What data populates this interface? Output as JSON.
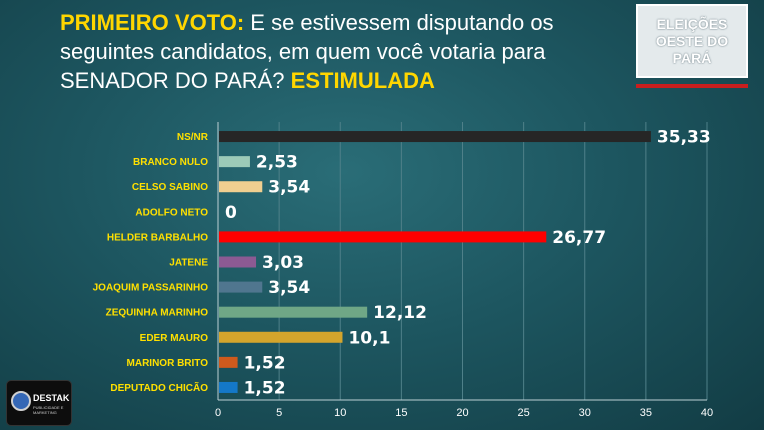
{
  "header": {
    "title_highlight": "PRIMEIRO VOTO:",
    "title_text": " E se estivessem disputando os seguintes candidatos, em quem você votaria para SENADOR DO PARÁ? ",
    "title_tag": "ESTIMULADA"
  },
  "badge": {
    "text": "ELEIÇÕES OESTE DO PARÁ"
  },
  "logo": {
    "name": "DESTAK",
    "tagline": "PUBLICIDADE E MARKETING"
  },
  "chart_data": {
    "type": "bar",
    "orientation": "horizontal",
    "categories": [
      "NS/NR",
      "BRANCO NULO",
      "CELSO SABINO",
      "ADOLFO NETO",
      "HELDER BARBALHO",
      "JATENE",
      "JOAQUIM PASSARINHO",
      "ZEQUINHA MARINHO",
      "EDER MAURO",
      "MARINOR BRITO",
      "DEPUTADO CHICÃO"
    ],
    "values": [
      35.33,
      2.53,
      3.54,
      0,
      26.77,
      3.03,
      3.54,
      12.12,
      10.1,
      1.52,
      1.52
    ],
    "value_labels": [
      "35,33",
      "2,53",
      "3,54",
      "0",
      "26,77",
      "3,03",
      "3,54",
      "12,12",
      "10,1",
      "1,52",
      "1,52"
    ],
    "colors": [
      "#262626",
      "#9ccab8",
      "#f0cf90",
      "#8b8b8b",
      "#ff0000",
      "#8c5a93",
      "#50768f",
      "#6fa786",
      "#d4a52c",
      "#cf5a1d",
      "#1478c8"
    ],
    "xlim": [
      0,
      40
    ],
    "xticks": [
      "0",
      "5",
      "10",
      "15",
      "20",
      "25",
      "30",
      "35",
      "40"
    ],
    "grid": true
  }
}
